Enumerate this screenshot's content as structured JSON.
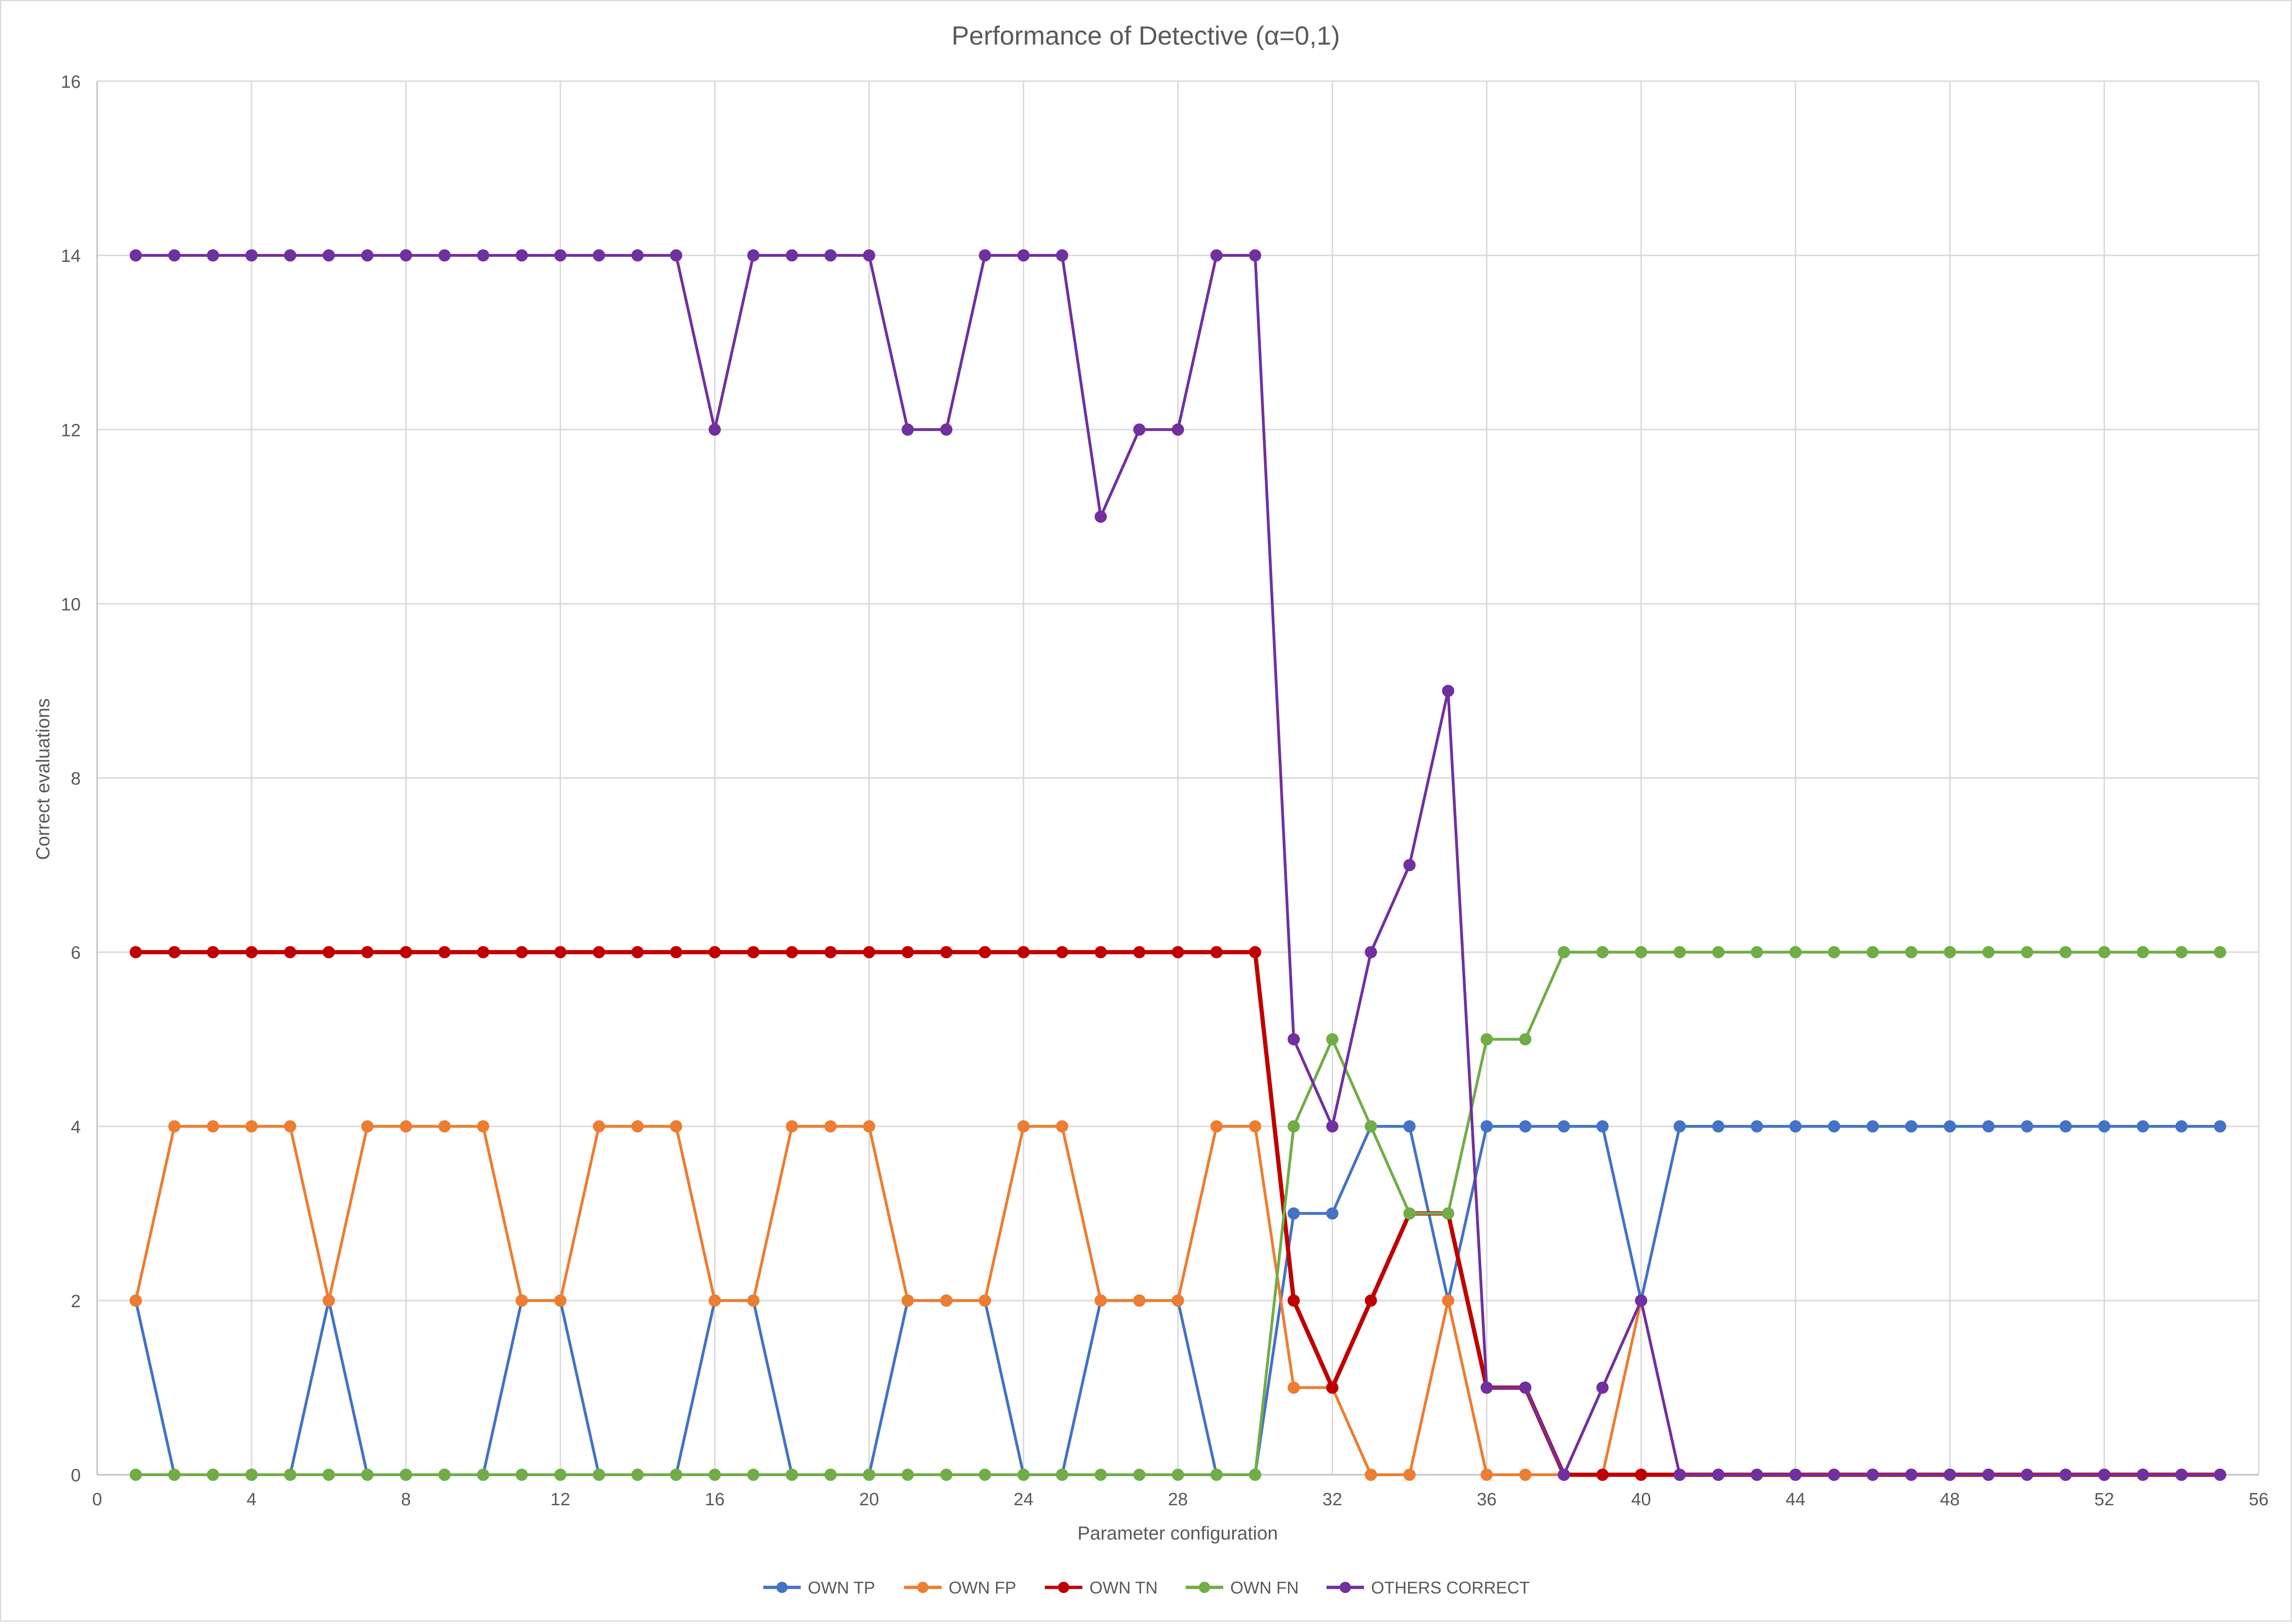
{
  "chart_data": {
    "type": "line",
    "title": "Performance of Detective (α=0,1)",
    "xlabel": "Parameter configuration",
    "ylabel": "Correct evaluations",
    "xlim": [
      0,
      56
    ],
    "ylim": [
      0,
      16
    ],
    "x_ticks": [
      0,
      4,
      8,
      12,
      16,
      20,
      24,
      28,
      32,
      36,
      40,
      44,
      48,
      52,
      56
    ],
    "y_ticks": [
      0,
      2,
      4,
      6,
      8,
      10,
      12,
      14,
      16
    ],
    "grid": true,
    "legend_position": "bottom",
    "x": [
      1,
      2,
      3,
      4,
      5,
      6,
      7,
      8,
      9,
      10,
      11,
      12,
      13,
      14,
      15,
      16,
      17,
      18,
      19,
      20,
      21,
      22,
      23,
      24,
      25,
      26,
      27,
      28,
      29,
      30,
      31,
      32,
      33,
      34,
      35,
      36,
      37,
      38,
      39,
      40,
      41,
      42,
      43,
      44,
      45,
      46,
      47,
      48,
      49,
      50,
      51,
      52,
      53,
      54,
      55
    ],
    "series": [
      {
        "name": "OWN TP",
        "color": "#4472C4",
        "values": [
          2,
          0,
          0,
          0,
          0,
          2,
          0,
          0,
          0,
          0,
          2,
          2,
          0,
          0,
          0,
          2,
          2,
          0,
          0,
          0,
          2,
          2,
          2,
          0,
          0,
          2,
          2,
          2,
          0,
          0,
          3,
          3,
          4,
          4,
          2,
          4,
          4,
          4,
          4,
          2,
          4,
          4,
          4,
          4,
          4,
          4,
          4,
          4,
          4,
          4,
          4,
          4,
          4,
          4,
          4
        ]
      },
      {
        "name": "OWN FP",
        "color": "#ED7D31",
        "values": [
          2,
          4,
          4,
          4,
          4,
          2,
          4,
          4,
          4,
          4,
          2,
          2,
          4,
          4,
          4,
          2,
          2,
          4,
          4,
          4,
          2,
          2,
          2,
          4,
          4,
          2,
          2,
          2,
          4,
          4,
          1,
          1,
          0,
          0,
          2,
          0,
          0,
          0,
          0,
          2,
          0,
          0,
          0,
          0,
          0,
          0,
          0,
          0,
          0,
          0,
          0,
          0,
          0,
          0,
          0
        ]
      },
      {
        "name": "OWN TN",
        "color": "#C00000",
        "values": [
          6,
          6,
          6,
          6,
          6,
          6,
          6,
          6,
          6,
          6,
          6,
          6,
          6,
          6,
          6,
          6,
          6,
          6,
          6,
          6,
          6,
          6,
          6,
          6,
          6,
          6,
          6,
          6,
          6,
          6,
          2,
          1,
          2,
          3,
          3,
          1,
          1,
          0,
          0,
          0,
          0,
          0,
          0,
          0,
          0,
          0,
          0,
          0,
          0,
          0,
          0,
          0,
          0,
          0,
          0
        ]
      },
      {
        "name": "OWN FN",
        "color": "#70AD47",
        "values": [
          0,
          0,
          0,
          0,
          0,
          0,
          0,
          0,
          0,
          0,
          0,
          0,
          0,
          0,
          0,
          0,
          0,
          0,
          0,
          0,
          0,
          0,
          0,
          0,
          0,
          0,
          0,
          0,
          0,
          0,
          4,
          5,
          4,
          3,
          3,
          5,
          5,
          6,
          6,
          6,
          6,
          6,
          6,
          6,
          6,
          6,
          6,
          6,
          6,
          6,
          6,
          6,
          6,
          6,
          6
        ]
      },
      {
        "name": "OTHERS CORRECT",
        "color": "#7030A0",
        "values": [
          14,
          14,
          14,
          14,
          14,
          14,
          14,
          14,
          14,
          14,
          14,
          14,
          14,
          14,
          14,
          12,
          14,
          14,
          14,
          14,
          12,
          12,
          14,
          14,
          14,
          11,
          12,
          12,
          14,
          14,
          5,
          4,
          6,
          7,
          9,
          1,
          1,
          0,
          1,
          2,
          0,
          0,
          0,
          0,
          0,
          0,
          0,
          0,
          0,
          0,
          0,
          0,
          0,
          0,
          0
        ]
      }
    ]
  }
}
